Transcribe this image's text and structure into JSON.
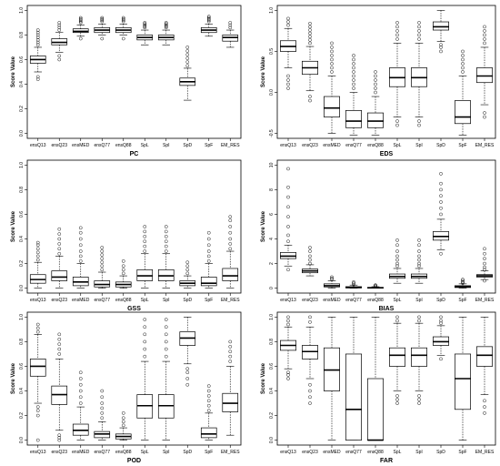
{
  "chart_data": [
    {
      "type": "boxplot",
      "xlabel": "PC",
      "ylabel": "Score Value",
      "ylim": [
        0,
        1
      ],
      "yticks": [
        "0.0",
        "0.2",
        "0.4",
        "0.6",
        "0.8",
        "1.0"
      ],
      "yticks_values": [
        0,
        0.2,
        0.4,
        0.6,
        0.8,
        1.0
      ],
      "categories": [
        "ensQ13",
        "ensQ23",
        "ensMED",
        "ensQ77",
        "ensQ88",
        "SpL",
        "SpI",
        "SpD",
        "SpF",
        "EM_RES"
      ],
      "boxes": [
        {
          "q1": 0.57,
          "median": 0.6,
          "q3": 0.63,
          "whislo": 0.5,
          "whishi": 0.7,
          "outliers": [
            0.44,
            0.46,
            0.72,
            0.74,
            0.76,
            0.78,
            0.8,
            0.82,
            0.84
          ]
        },
        {
          "q1": 0.72,
          "median": 0.74,
          "q3": 0.77,
          "whislo": 0.66,
          "whishi": 0.82,
          "outliers": [
            0.6,
            0.63,
            0.84,
            0.86,
            0.88,
            0.9
          ]
        },
        {
          "q1": 0.82,
          "median": 0.83,
          "q3": 0.85,
          "whislo": 0.79,
          "whishi": 0.88,
          "outliers": [
            0.77,
            0.9,
            0.91,
            0.92,
            0.93,
            0.94
          ]
        },
        {
          "q1": 0.82,
          "median": 0.84,
          "q3": 0.86,
          "whislo": 0.8,
          "whishi": 0.89,
          "outliers": [
            0.77,
            0.91,
            0.92,
            0.93,
            0.94
          ]
        },
        {
          "q1": 0.82,
          "median": 0.84,
          "q3": 0.86,
          "whislo": 0.8,
          "whishi": 0.89,
          "outliers": [
            0.77,
            0.91,
            0.92,
            0.93,
            0.94
          ]
        },
        {
          "q1": 0.76,
          "median": 0.78,
          "q3": 0.8,
          "whislo": 0.72,
          "whishi": 0.84,
          "outliers": [
            0.86,
            0.87,
            0.88,
            0.89,
            0.9
          ]
        },
        {
          "q1": 0.76,
          "median": 0.78,
          "q3": 0.8,
          "whislo": 0.72,
          "whishi": 0.84,
          "outliers": [
            0.86,
            0.87,
            0.88,
            0.89,
            0.9
          ]
        },
        {
          "q1": 0.39,
          "median": 0.42,
          "q3": 0.45,
          "whislo": 0.27,
          "whishi": 0.53,
          "outliers": [
            0.55,
            0.58,
            0.61,
            0.64,
            0.67,
            0.7
          ]
        },
        {
          "q1": 0.82,
          "median": 0.84,
          "q3": 0.86,
          "whislo": 0.79,
          "whishi": 0.89,
          "outliers": [
            0.91,
            0.92,
            0.93,
            0.94,
            0.95
          ]
        },
        {
          "q1": 0.75,
          "median": 0.78,
          "q3": 0.8,
          "whislo": 0.7,
          "whishi": 0.84,
          "outliers": [
            0.86,
            0.88,
            0.9
          ]
        }
      ]
    },
    {
      "type": "boxplot",
      "xlabel": "EDS",
      "ylabel": "Score Value",
      "ylim": [
        -0.5,
        1
      ],
      "yticks": [
        "-0.5",
        "0.0",
        "0.5",
        "1.0"
      ],
      "yticks_values": [
        -0.5,
        0,
        0.5,
        1.0
      ],
      "categories": [
        "ensQ13",
        "ensQ23",
        "ensMED",
        "ensQ77",
        "ensQ88",
        "SpL",
        "SpI",
        "SpD",
        "SpF",
        "EM_RES"
      ],
      "boxes": [
        {
          "q1": 0.5,
          "median": 0.56,
          "q3": 0.63,
          "whislo": 0.3,
          "whishi": 0.78,
          "outliers": [
            0.05,
            0.1,
            0.15,
            0.2,
            0.82,
            0.86,
            0.9
          ]
        },
        {
          "q1": 0.22,
          "median": 0.3,
          "q3": 0.38,
          "whislo": 0.02,
          "whishi": 0.56,
          "outliers": [
            -0.1,
            -0.05,
            0.6,
            0.64,
            0.68,
            0.72,
            0.76,
            0.8,
            0.84
          ]
        },
        {
          "q1": -0.3,
          "median": -0.19,
          "q3": -0.05,
          "whislo": -0.5,
          "whishi": 0.2,
          "outliers": [
            0.25,
            0.3,
            0.35,
            0.4,
            0.45,
            0.5,
            0.55,
            0.6
          ]
        },
        {
          "q1": -0.43,
          "median": -0.35,
          "q3": -0.22,
          "whislo": -0.52,
          "whishi": 0.0,
          "outliers": [
            0.05,
            0.1,
            0.15,
            0.2,
            0.25,
            0.3,
            0.35,
            0.4,
            0.45
          ]
        },
        {
          "q1": -0.43,
          "median": -0.35,
          "q3": -0.25,
          "whislo": -0.52,
          "whishi": -0.05,
          "outliers": [
            0.0,
            0.05,
            0.1,
            0.15,
            0.2,
            0.25
          ]
        },
        {
          "q1": 0.07,
          "median": 0.18,
          "q3": 0.3,
          "whislo": -0.3,
          "whishi": 0.6,
          "outliers": [
            -0.4,
            -0.35,
            0.65,
            0.7,
            0.75,
            0.8,
            0.85
          ]
        },
        {
          "q1": 0.07,
          "median": 0.18,
          "q3": 0.3,
          "whislo": -0.3,
          "whishi": 0.6,
          "outliers": [
            -0.4,
            -0.35,
            0.65,
            0.7,
            0.75,
            0.8,
            0.85
          ]
        },
        {
          "q1": 0.76,
          "median": 0.8,
          "q3": 0.86,
          "whislo": 0.62,
          "whishi": 1.0,
          "outliers": [
            0.5,
            0.55,
            0.58
          ]
        },
        {
          "q1": -0.38,
          "median": -0.3,
          "q3": -0.1,
          "whislo": -0.52,
          "whishi": 0.2,
          "outliers": [
            0.25,
            0.3,
            0.35,
            0.4,
            0.45,
            0.5
          ]
        },
        {
          "q1": 0.12,
          "median": 0.2,
          "q3": 0.3,
          "whislo": -0.15,
          "whishi": 0.55,
          "outliers": [
            -0.3,
            -0.25,
            0.6,
            0.65,
            0.7,
            0.75,
            0.8
          ]
        }
      ]
    },
    {
      "type": "boxplot",
      "xlabel": "GSS",
      "ylabel": "Score Value",
      "ylim": [
        0,
        1
      ],
      "yticks": [
        "0.0",
        "0.2",
        "0.4",
        "0.6",
        "0.8",
        "1.0"
      ],
      "yticks_values": [
        0,
        0.2,
        0.4,
        0.6,
        0.8,
        1.0
      ],
      "categories": [
        "ensQ13",
        "ensQ23",
        "ensMED",
        "ensQ77",
        "ensQ88",
        "SpL",
        "SpI",
        "SpD",
        "SpF",
        "EM_RES"
      ],
      "boxes": [
        {
          "q1": 0.04,
          "median": 0.07,
          "q3": 0.11,
          "whislo": 0.0,
          "whishi": 0.21,
          "outliers": [
            0.23,
            0.26,
            0.29,
            0.32,
            0.35,
            0.37
          ]
        },
        {
          "q1": 0.06,
          "median": 0.09,
          "q3": 0.14,
          "whislo": 0.0,
          "whishi": 0.26,
          "outliers": [
            0.28,
            0.32,
            0.36,
            0.4,
            0.44,
            0.48
          ]
        },
        {
          "q1": 0.02,
          "median": 0.05,
          "q3": 0.09,
          "whislo": 0.0,
          "whishi": 0.2,
          "outliers": [
            0.22,
            0.26,
            0.3,
            0.35,
            0.4,
            0.45,
            0.49
          ]
        },
        {
          "q1": 0.01,
          "median": 0.03,
          "q3": 0.06,
          "whislo": 0.0,
          "whishi": 0.13,
          "outliers": [
            0.15,
            0.18,
            0.21,
            0.24,
            0.27,
            0.3,
            0.33
          ]
        },
        {
          "q1": 0.01,
          "median": 0.03,
          "q3": 0.05,
          "whislo": 0.0,
          "whishi": 0.1,
          "outliers": [
            0.12,
            0.15,
            0.18,
            0.22
          ]
        },
        {
          "q1": 0.06,
          "median": 0.1,
          "q3": 0.15,
          "whislo": 0.0,
          "whishi": 0.28,
          "outliers": [
            0.3,
            0.34,
            0.38,
            0.42,
            0.46,
            0.5
          ]
        },
        {
          "q1": 0.06,
          "median": 0.1,
          "q3": 0.15,
          "whislo": 0.0,
          "whishi": 0.28,
          "outliers": [
            0.3,
            0.34,
            0.38,
            0.42,
            0.46,
            0.5
          ]
        },
        {
          "q1": 0.02,
          "median": 0.04,
          "q3": 0.06,
          "whislo": 0.0,
          "whishi": 0.1,
          "outliers": [
            0.12,
            0.15,
            0.18,
            0.21
          ]
        },
        {
          "q1": 0.02,
          "median": 0.04,
          "q3": 0.09,
          "whislo": 0.0,
          "whishi": 0.2,
          "outliers": [
            0.22,
            0.26,
            0.3,
            0.35,
            0.4,
            0.45
          ]
        },
        {
          "q1": 0.06,
          "median": 0.1,
          "q3": 0.16,
          "whislo": 0.0,
          "whishi": 0.3,
          "outliers": [
            0.32,
            0.36,
            0.4,
            0.45,
            0.5,
            0.55,
            0.58
          ]
        }
      ]
    },
    {
      "type": "boxplot",
      "xlabel": "BIAS",
      "ylabel": "Score Value",
      "ylim": [
        0,
        10
      ],
      "yticks": [
        "0",
        "2",
        "4",
        "6",
        "8",
        "10"
      ],
      "yticks_values": [
        0,
        2,
        4,
        6,
        8,
        10
      ],
      "categories": [
        "ensQ13",
        "ensQ23",
        "ensMED",
        "ensQ77",
        "ensQ88",
        "SpL",
        "SpI",
        "SpD",
        "SpF",
        "EM_RES"
      ],
      "boxes": [
        {
          "q1": 2.4,
          "median": 2.6,
          "q3": 2.9,
          "whislo": 1.8,
          "whishi": 3.5,
          "outliers": [
            1.5,
            3.8,
            4.3,
            5.0,
            5.8,
            6.6,
            7.4,
            8.2,
            9.7
          ]
        },
        {
          "q1": 1.25,
          "median": 1.4,
          "q3": 1.55,
          "whislo": 1.0,
          "whishi": 1.9,
          "outliers": [
            2.0,
            2.3,
            2.6,
            3.0,
            3.3
          ]
        },
        {
          "q1": 0.1,
          "median": 0.2,
          "q3": 0.35,
          "whislo": 0.0,
          "whishi": 0.6,
          "outliers": [
            0.7,
            0.8,
            0.9
          ]
        },
        {
          "q1": 0.02,
          "median": 0.06,
          "q3": 0.12,
          "whislo": 0.0,
          "whishi": 0.25,
          "outliers": [
            0.3,
            0.4,
            0.5
          ]
        },
        {
          "q1": 0.0,
          "median": 0.03,
          "q3": 0.06,
          "whislo": 0.0,
          "whishi": 0.12,
          "outliers": [
            0.15,
            0.2,
            0.25
          ]
        },
        {
          "q1": 0.8,
          "median": 0.95,
          "q3": 1.15,
          "whislo": 0.4,
          "whishi": 1.6,
          "outliers": [
            1.8,
            2.0,
            2.3,
            2.6,
            3.0,
            3.5,
            3.9
          ]
        },
        {
          "q1": 0.8,
          "median": 0.95,
          "q3": 1.15,
          "whislo": 0.4,
          "whishi": 1.6,
          "outliers": [
            1.8,
            2.0,
            2.3,
            2.6,
            3.0,
            3.5,
            3.9
          ]
        },
        {
          "q1": 3.9,
          "median": 4.2,
          "q3": 4.6,
          "whislo": 3.1,
          "whishi": 5.6,
          "outliers": [
            2.8,
            6.0,
            6.5,
            7.0,
            7.5,
            8.0,
            8.5,
            9.3
          ]
        },
        {
          "q1": 0.05,
          "median": 0.12,
          "q3": 0.2,
          "whislo": 0.0,
          "whishi": 0.35,
          "outliers": [
            0.4,
            0.5,
            0.6,
            0.7
          ]
        },
        {
          "q1": 0.9,
          "median": 1.0,
          "q3": 1.1,
          "whislo": 0.7,
          "whishi": 1.4,
          "outliers": [
            0.6,
            1.5,
            1.7,
            2.0,
            2.4,
            2.8,
            3.2
          ]
        }
      ]
    },
    {
      "type": "boxplot",
      "xlabel": "POD",
      "ylabel": "Score Value",
      "ylim": [
        0,
        1
      ],
      "yticks": [
        "0.0",
        "0.2",
        "0.4",
        "0.6",
        "0.8",
        "1.0"
      ],
      "yticks_values": [
        0,
        0.2,
        0.4,
        0.6,
        0.8,
        1.0
      ],
      "categories": [
        "ensQ13",
        "ensQ23",
        "ensMED",
        "ensQ77",
        "ensQ88",
        "SpL",
        "SpI",
        "SpD",
        "SpF",
        "EM_RES"
      ],
      "boxes": [
        {
          "q1": 0.52,
          "median": 0.6,
          "q3": 0.66,
          "whislo": 0.3,
          "whishi": 0.86,
          "outliers": [
            0.0,
            0.2,
            0.24,
            0.27,
            0.88,
            0.91,
            0.94
          ]
        },
        {
          "q1": 0.29,
          "median": 0.37,
          "q3": 0.44,
          "whislo": 0.08,
          "whishi": 0.66,
          "outliers": [
            0.0,
            0.02,
            0.04,
            0.7,
            0.74,
            0.78,
            0.82,
            0.86
          ]
        },
        {
          "q1": 0.04,
          "median": 0.08,
          "q3": 0.13,
          "whislo": 0.0,
          "whishi": 0.27,
          "outliers": [
            0.3,
            0.35,
            0.4,
            0.45,
            0.5,
            0.55
          ]
        },
        {
          "q1": 0.02,
          "median": 0.05,
          "q3": 0.07,
          "whislo": 0.0,
          "whishi": 0.15,
          "outliers": [
            0.18,
            0.22,
            0.26,
            0.3,
            0.35,
            0.4
          ]
        },
        {
          "q1": 0.01,
          "median": 0.03,
          "q3": 0.05,
          "whislo": 0.0,
          "whishi": 0.1,
          "outliers": [
            0.12,
            0.15,
            0.18,
            0.22
          ]
        },
        {
          "q1": 0.18,
          "median": 0.28,
          "q3": 0.37,
          "whislo": 0.0,
          "whishi": 0.64,
          "outliers": [
            0.68,
            0.74,
            0.8,
            0.86,
            0.92,
            0.98
          ]
        },
        {
          "q1": 0.18,
          "median": 0.28,
          "q3": 0.37,
          "whislo": 0.0,
          "whishi": 0.64,
          "outliers": [
            0.68,
            0.74,
            0.8,
            0.86,
            0.92,
            0.98
          ]
        },
        {
          "q1": 0.77,
          "median": 0.83,
          "q3": 0.88,
          "whislo": 0.62,
          "whishi": 1.0,
          "outliers": [
            0.45,
            0.5,
            0.55,
            0.58
          ]
        },
        {
          "q1": 0.02,
          "median": 0.05,
          "q3": 0.1,
          "whislo": 0.0,
          "whishi": 0.22,
          "outliers": [
            0.24,
            0.28,
            0.32,
            0.36,
            0.4,
            0.44
          ]
        },
        {
          "q1": 0.23,
          "median": 0.3,
          "q3": 0.38,
          "whislo": 0.04,
          "whishi": 0.6,
          "outliers": [
            0.64,
            0.68,
            0.72,
            0.76,
            0.8
          ]
        }
      ]
    },
    {
      "type": "boxplot",
      "xlabel": "FAR",
      "ylabel": "Score Value",
      "ylim": [
        0,
        1
      ],
      "yticks": [
        "0.0",
        "0.2",
        "0.4",
        "0.6",
        "0.8",
        "1.0"
      ],
      "yticks_values": [
        0,
        0.2,
        0.4,
        0.6,
        0.8,
        1.0
      ],
      "categories": [
        "ensQ13",
        "ensQ23",
        "ensMED",
        "ensQ77",
        "ensQ88",
        "SpL",
        "SpI",
        "SpD",
        "SpF",
        "EM_RES"
      ],
      "boxes": [
        {
          "q1": 0.73,
          "median": 0.77,
          "q3": 0.81,
          "whislo": 0.58,
          "whishi": 0.92,
          "outliers": [
            0.5,
            0.53,
            0.55,
            0.94,
            0.97,
            1.0
          ]
        },
        {
          "q1": 0.66,
          "median": 0.72,
          "q3": 0.77,
          "whislo": 0.5,
          "whishi": 0.92,
          "outliers": [
            0.3,
            0.35,
            0.4,
            0.45,
            0.96,
            1.0
          ]
        },
        {
          "q1": 0.4,
          "median": 0.57,
          "q3": 0.75,
          "whislo": 0.0,
          "whishi": 1.0,
          "outliers": []
        },
        {
          "q1": 0.0,
          "median": 0.25,
          "q3": 0.7,
          "whislo": 0.0,
          "whishi": 1.0,
          "outliers": []
        },
        {
          "q1": 0.0,
          "median": 0.0,
          "q3": 0.5,
          "whislo": 0.0,
          "whishi": 1.0,
          "outliers": []
        },
        {
          "q1": 0.6,
          "median": 0.69,
          "q3": 0.75,
          "whislo": 0.4,
          "whishi": 0.95,
          "outliers": [
            0.3,
            0.33,
            0.36,
            0.97,
            1.0
          ]
        },
        {
          "q1": 0.6,
          "median": 0.69,
          "q3": 0.75,
          "whislo": 0.4,
          "whishi": 0.95,
          "outliers": [
            0.3,
            0.33,
            0.36,
            0.97,
            1.0
          ]
        },
        {
          "q1": 0.77,
          "median": 0.8,
          "q3": 0.84,
          "whislo": 0.69,
          "whishi": 0.93,
          "outliers": [
            0.66,
            0.95,
            0.97,
            1.0
          ]
        },
        {
          "q1": 0.25,
          "median": 0.5,
          "q3": 0.7,
          "whislo": 0.0,
          "whishi": 1.0,
          "outliers": []
        },
        {
          "q1": 0.6,
          "median": 0.69,
          "q3": 0.76,
          "whislo": 0.37,
          "whishi": 1.0,
          "outliers": [
            0.22,
            0.27,
            0.32
          ]
        }
      ]
    }
  ]
}
